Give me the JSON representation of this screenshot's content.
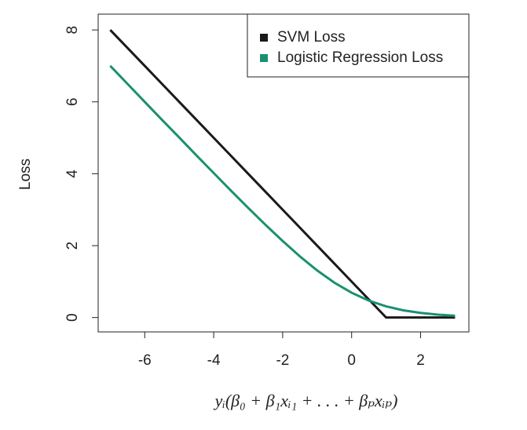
{
  "chart_data": {
    "type": "line",
    "x_label": "yᵢ(β₀ + β₁xᵢ₁ + . . . + βₚxᵢₚ)",
    "y_label": "Loss",
    "x": [
      -7,
      -6.5,
      -6,
      -5.5,
      -5,
      -4.5,
      -4,
      -3.5,
      -3,
      -2.5,
      -2,
      -1.5,
      -1,
      -0.5,
      0,
      0.5,
      1,
      1.5,
      2,
      2.5,
      3
    ],
    "series": [
      {
        "name": "SVM Loss",
        "color": "#1a1a1a",
        "values": [
          8,
          7.5,
          7,
          6.5,
          6,
          5.5,
          5,
          4.5,
          4,
          3.5,
          3,
          2.5,
          2,
          1.5,
          1,
          0.5,
          0,
          0,
          0,
          0,
          0
        ]
      },
      {
        "name": "Logistic Regression Loss",
        "color": "#1a9070",
        "values": [
          7.0,
          6.5,
          6.0,
          5.5,
          5.01,
          4.51,
          4.02,
          3.53,
          3.05,
          2.58,
          2.13,
          1.7,
          1.31,
          0.97,
          0.69,
          0.47,
          0.31,
          0.2,
          0.13,
          0.08,
          0.05
        ]
      }
    ],
    "xlim": [
      -7.35,
      3.4
    ],
    "ylim": [
      -0.4,
      8.44
    ],
    "xticks": [
      -6,
      -4,
      -2,
      0,
      2
    ],
    "yticks": [
      0,
      2,
      4,
      6,
      8
    ],
    "legend": "topright"
  }
}
